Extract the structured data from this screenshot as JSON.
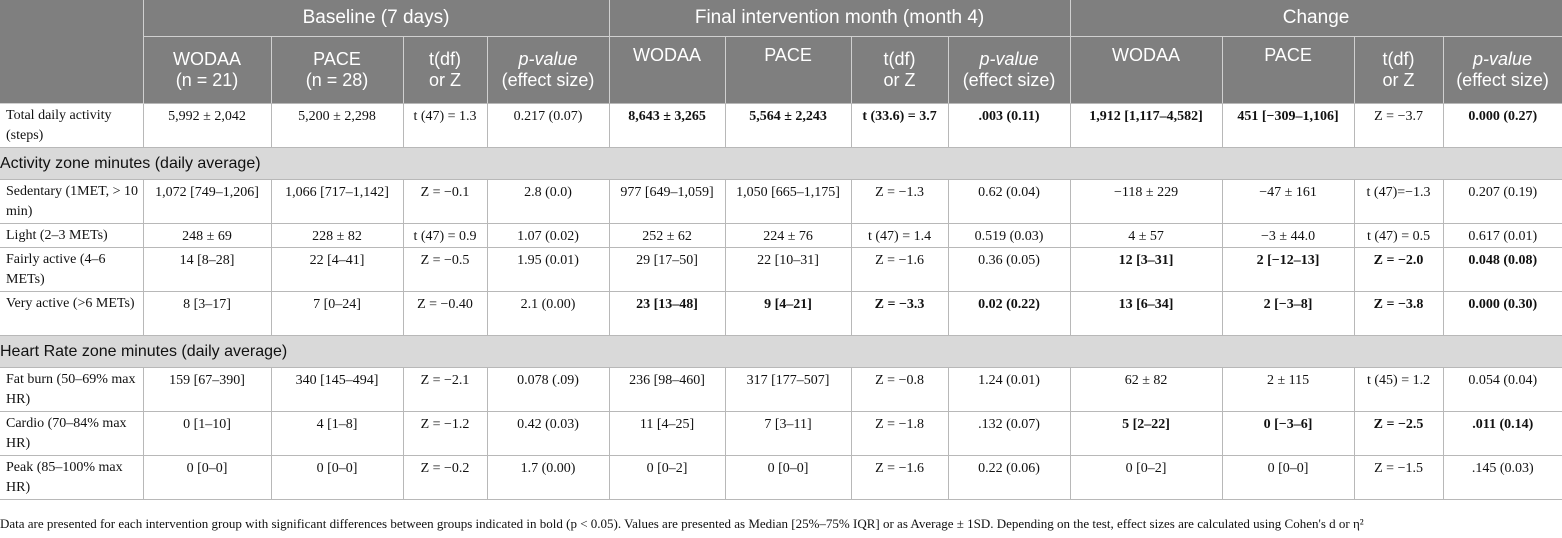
{
  "groups": {
    "baseline": "Baseline (7 days)",
    "final": "Final intervention month (month 4)",
    "change": "Change"
  },
  "subheaders": {
    "wodaa": "WODAA",
    "pace": "PACE",
    "n_baseline_wodaa": "(n = 21)",
    "n_baseline_pace": "(n = 28)",
    "tdf_line1": "t(df)",
    "tdf_line2": "or Z",
    "p_line1": "p-value",
    "p_line2": "(effect size)"
  },
  "rows_top": [
    {
      "label": "Total daily activity (steps)",
      "cells": [
        {
          "v": "5,992 ± 2,042",
          "b": false
        },
        {
          "v": "5,200 ± 2,298",
          "b": false
        },
        {
          "v": "t (47) = 1.3",
          "b": false
        },
        {
          "v": "0.217 (0.07)",
          "b": false
        },
        {
          "v": "8,643 ± 3,265",
          "b": true
        },
        {
          "v": "5,564 ± 2,243",
          "b": true
        },
        {
          "v": "t (33.6) = 3.7",
          "b": true
        },
        {
          "v": ".003 (0.11)",
          "b": true
        },
        {
          "v": "1,912 [1,117–4,582]",
          "b": true
        },
        {
          "v": "451 [−309–1,106]",
          "b": true
        },
        {
          "v": "Z = −3.7",
          "b": false
        },
        {
          "v": "0.000 (0.27)",
          "b": true
        }
      ]
    }
  ],
  "sections": [
    {
      "title": "Activity zone minutes (daily average)",
      "rows": [
        {
          "label": "Sedentary (1MET, > 10 min)",
          "cells": [
            {
              "v": "1,072 [749–1,206]",
              "b": false
            },
            {
              "v": "1,066 [717–1,142]",
              "b": false
            },
            {
              "v": "Z = −0.1",
              "b": false
            },
            {
              "v": "2.8 (0.0)",
              "b": false
            },
            {
              "v": "977 [649–1,059]",
              "b": false
            },
            {
              "v": "1,050 [665–1,175]",
              "b": false
            },
            {
              "v": "Z = −1.3",
              "b": false
            },
            {
              "v": "0.62 (0.04)",
              "b": false
            },
            {
              "v": "−118 ± 229",
              "b": false
            },
            {
              "v": "−47 ± 161",
              "b": false
            },
            {
              "v": "t (47)=−1.3",
              "b": false
            },
            {
              "v": "0.207 (0.19)",
              "b": false
            }
          ]
        },
        {
          "label": "Light (2–3 METs)",
          "cells": [
            {
              "v": "248 ± 69",
              "b": false
            },
            {
              "v": "228 ± 82",
              "b": false
            },
            {
              "v": "t (47) = 0.9",
              "b": false
            },
            {
              "v": "1.07 (0.02)",
              "b": false
            },
            {
              "v": "252 ± 62",
              "b": false
            },
            {
              "v": "224 ± 76",
              "b": false
            },
            {
              "v": "t (47) = 1.4",
              "b": false
            },
            {
              "v": "0.519 (0.03)",
              "b": false
            },
            {
              "v": "4 ± 57",
              "b": false
            },
            {
              "v": "−3 ± 44.0",
              "b": false
            },
            {
              "v": "t (47) = 0.5",
              "b": false
            },
            {
              "v": "0.617 (0.01)",
              "b": false
            }
          ]
        },
        {
          "label": "Fairly active (4–6 METs)",
          "cells": [
            {
              "v": "14 [8–28]",
              "b": false
            },
            {
              "v": "22 [4–41]",
              "b": false
            },
            {
              "v": "Z = −0.5",
              "b": false
            },
            {
              "v": "1.95 (0.01)",
              "b": false
            },
            {
              "v": "29 [17–50]",
              "b": false
            },
            {
              "v": "22 [10–31]",
              "b": false
            },
            {
              "v": "Z = −1.6",
              "b": false
            },
            {
              "v": "0.36 (0.05)",
              "b": false
            },
            {
              "v": "12 [3–31]",
              "b": true
            },
            {
              "v": "2 [−12–13]",
              "b": true
            },
            {
              "v": "Z = −2.0",
              "b": true
            },
            {
              "v": "0.048 (0.08)",
              "b": true
            }
          ]
        },
        {
          "label": "Very active (>6 METs)",
          "cells": [
            {
              "v": "8 [3–17]",
              "b": false
            },
            {
              "v": "7 [0–24]",
              "b": false
            },
            {
              "v": "Z = −0.40",
              "b": false
            },
            {
              "v": "2.1 (0.00)",
              "b": false
            },
            {
              "v": "23 [13–48]",
              "b": true
            },
            {
              "v": "9 [4–21]",
              "b": true
            },
            {
              "v": "Z = −3.3",
              "b": true
            },
            {
              "v": "0.02 (0.22)",
              "b": true
            },
            {
              "v": "13 [6–34]",
              "b": true
            },
            {
              "v": "2 [−3–8]",
              "b": true
            },
            {
              "v": "Z = −3.8",
              "b": true
            },
            {
              "v": "0.000 (0.30)",
              "b": true
            }
          ]
        }
      ]
    },
    {
      "title": "Heart Rate zone minutes (daily average)",
      "rows": [
        {
          "label": "Fat burn (50–69% max HR)",
          "cells": [
            {
              "v": "159 [67–390]",
              "b": false
            },
            {
              "v": "340 [145–494]",
              "b": false
            },
            {
              "v": "Z = −2.1",
              "b": false
            },
            {
              "v": "0.078 (.09)",
              "b": false
            },
            {
              "v": "236 [98–460]",
              "b": false
            },
            {
              "v": "317 [177–507]",
              "b": false
            },
            {
              "v": "Z = −0.8",
              "b": false
            },
            {
              "v": "1.24 (0.01)",
              "b": false
            },
            {
              "v": "62 ± 82",
              "b": false
            },
            {
              "v": "2 ± 115",
              "b": false
            },
            {
              "v": "t (45) = 1.2",
              "b": false
            },
            {
              "v": "0.054 (0.04)",
              "b": false
            }
          ]
        },
        {
          "label": "Cardio (70–84% max HR)",
          "cells": [
            {
              "v": "0 [1–10]",
              "b": false
            },
            {
              "v": "4 [1–8]",
              "b": false
            },
            {
              "v": "Z = −1.2",
              "b": false
            },
            {
              "v": "0.42 (0.03)",
              "b": false
            },
            {
              "v": "11 [4–25]",
              "b": false
            },
            {
              "v": "7 [3–11]",
              "b": false
            },
            {
              "v": "Z = −1.8",
              "b": false
            },
            {
              "v": ".132 (0.07)",
              "b": false
            },
            {
              "v": "5 [2–22]",
              "b": true
            },
            {
              "v": "0 [−3–6]",
              "b": true
            },
            {
              "v": "Z = −2.5",
              "b": true
            },
            {
              "v": ".011 (0.14)",
              "b": true
            }
          ]
        },
        {
          "label": "Peak (85–100% max HR)",
          "cells": [
            {
              "v": "0 [0–0]",
              "b": false
            },
            {
              "v": "0 [0–0]",
              "b": false
            },
            {
              "v": "Z = −0.2",
              "b": false
            },
            {
              "v": "1.7 (0.00)",
              "b": false
            },
            {
              "v": "0 [0–2]",
              "b": false
            },
            {
              "v": "0 [0–0]",
              "b": false
            },
            {
              "v": "Z = −1.6",
              "b": false
            },
            {
              "v": "0.22 (0.06)",
              "b": false
            },
            {
              "v": "0 [0–2]",
              "b": false
            },
            {
              "v": "0 [0–0]",
              "b": false
            },
            {
              "v": "Z = −1.5",
              "b": false
            },
            {
              "v": ".145 (0.03)",
              "b": false
            }
          ]
        }
      ]
    }
  ],
  "footnote": "Data are presented for each intervention group with significant differences between groups indicated in bold (p < 0.05). Values are presented as Median [25%–75% IQR] or as Average ± 1SD. Depending on the test, effect sizes are calculated using Cohen's d or η²"
}
